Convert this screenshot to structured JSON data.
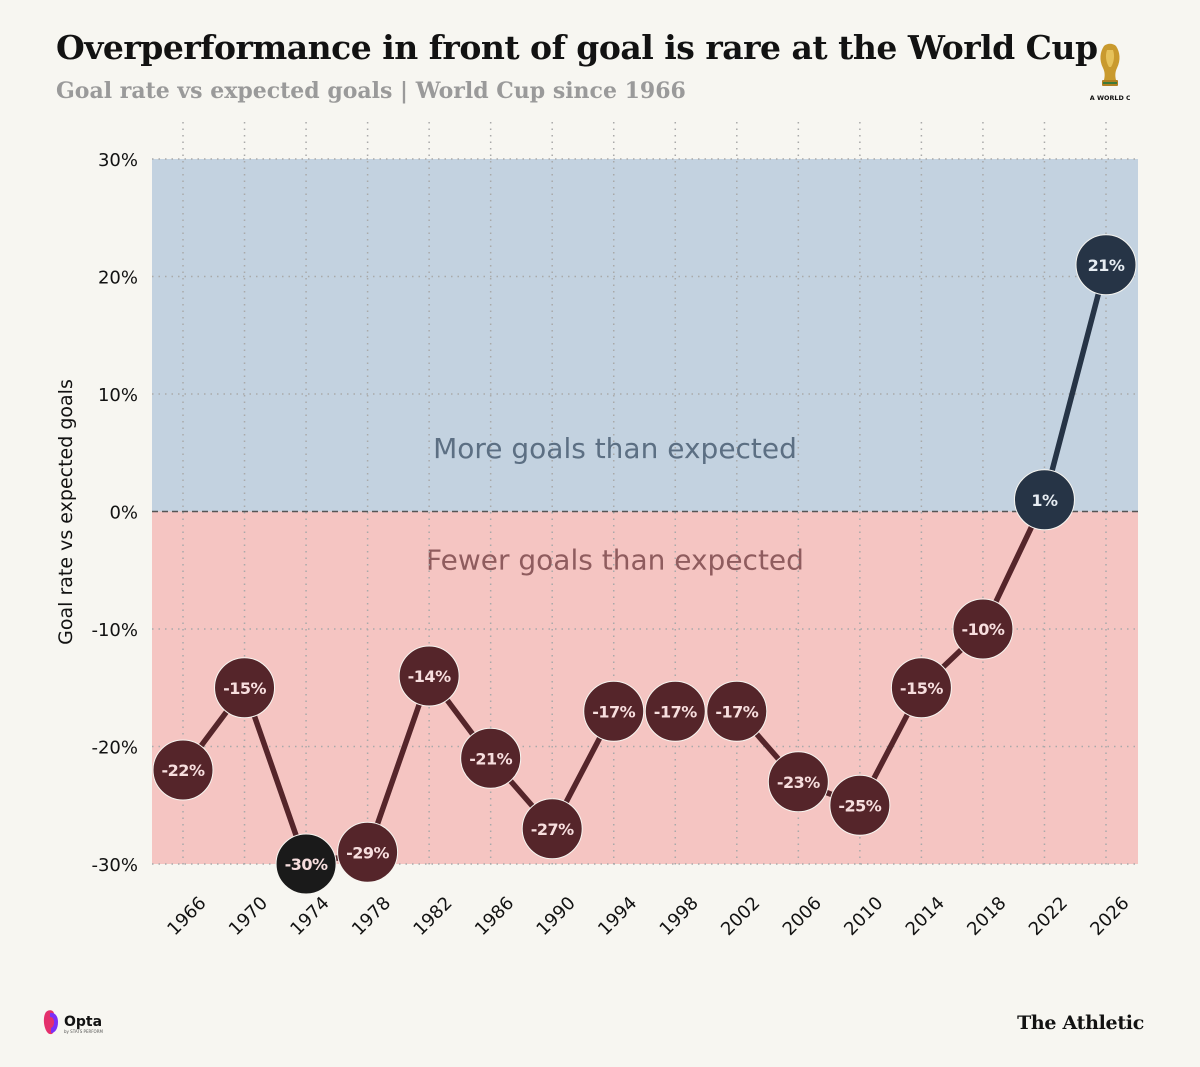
{
  "title": "Overperformance in front of goal is rare at the World Cup",
  "subtitle": "Goal rate vs expected goals | World Cup since 1966",
  "logos": {
    "world_cup_text": "FIFA WORLD CUP",
    "opta_text": "Opta",
    "opta_sub": "by STATS PERFORM",
    "brand": "The Athletic"
  },
  "colors": {
    "above_band": "#c3d2e0",
    "below_band": "#f5c5c2",
    "point_below": "#55252a",
    "point_above": "#263446",
    "point_min": "#1a1a1a"
  },
  "chart_data": {
    "type": "line",
    "title": "Overperformance in front of goal is rare at the World Cup",
    "subtitle": "Goal rate vs expected goals | World Cup since 1966",
    "xlabel": "",
    "ylabel": "Goal rate vs expected goals",
    "ylim": [
      -30,
      30
    ],
    "yticks": [
      30,
      20,
      10,
      0,
      -10,
      -20,
      -30
    ],
    "ytick_labels": [
      "30%",
      "20%",
      "10%",
      "0%",
      "-10%",
      "-20%",
      "-30%"
    ],
    "grid": true,
    "zero_line": "dashed",
    "bands": [
      {
        "label": "More goals than expected",
        "from": 0,
        "to": 30
      },
      {
        "label": "Fewer goals than expected",
        "from": -30,
        "to": 0
      }
    ],
    "categories": [
      "1966",
      "1970",
      "1974",
      "1978",
      "1982",
      "1986",
      "1990",
      "1994",
      "1998",
      "2002",
      "2006",
      "2010",
      "2014",
      "2018",
      "2022",
      "2026"
    ],
    "values": [
      -22,
      -15,
      -30,
      -29,
      -14,
      -21,
      -27,
      -17,
      -17,
      -17,
      -23,
      -25,
      -15,
      -10,
      1,
      21
    ],
    "data_labels": [
      "-22%",
      "-15%",
      "-30%",
      "-29%",
      "-14%",
      "-21%",
      "-27%",
      "-17%",
      "-17%",
      "-17%",
      "-23%",
      "-25%",
      "-15%",
      "-10%",
      "1%",
      "21%"
    ],
    "line_breaks_between": [
      [
        "1994",
        "1998"
      ],
      [
        "1998",
        "2002"
      ]
    ]
  }
}
